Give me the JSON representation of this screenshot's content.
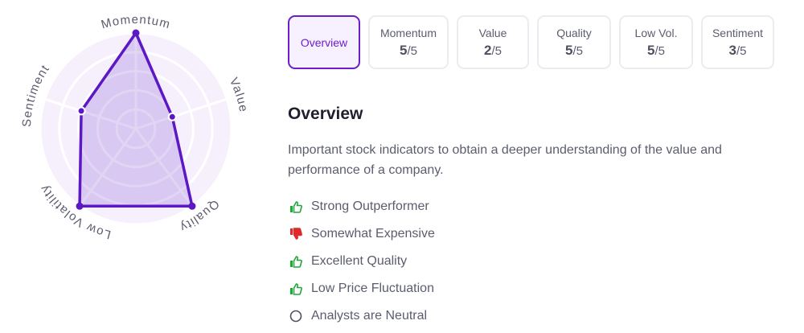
{
  "chart_data": {
    "type": "radar",
    "categories": [
      "Momentum",
      "Value",
      "Quality",
      "Low Volatility",
      "Sentiment"
    ],
    "values": [
      5,
      2,
      5,
      5,
      3
    ],
    "rlim": [
      0,
      5
    ],
    "grid": true,
    "colors": {
      "line": "#5b18c4",
      "fill": "#d9c6f0",
      "background": "#f6f0fd",
      "grid": "#ffffff"
    }
  },
  "tabs": [
    {
      "label": "Overview",
      "active": true
    },
    {
      "label": "Momentum",
      "score": "5",
      "max": "/5"
    },
    {
      "label": "Value",
      "score": "2",
      "max": "/5"
    },
    {
      "label": "Quality",
      "score": "5",
      "max": "/5"
    },
    {
      "label": "Low Vol.",
      "score": "5",
      "max": "/5"
    },
    {
      "label": "Sentiment",
      "score": "3",
      "max": "/5"
    }
  ],
  "overview": {
    "title": "Overview",
    "description": "Important stock indicators to obtain a deeper understanding of the value and performance of a company.",
    "items": [
      {
        "icon": "thumbs-up",
        "color": "#1fa83a",
        "label": "Strong Outperformer"
      },
      {
        "icon": "thumbs-down",
        "color": "#e02a2a",
        "label": "Somewhat Expensive"
      },
      {
        "icon": "thumbs-up",
        "color": "#1fa83a",
        "label": "Excellent Quality"
      },
      {
        "icon": "thumbs-up",
        "color": "#1fa83a",
        "label": "Low Price Fluctuation"
      },
      {
        "icon": "circle",
        "color": "#4e5060",
        "label": "Analysts are Neutral"
      }
    ]
  }
}
